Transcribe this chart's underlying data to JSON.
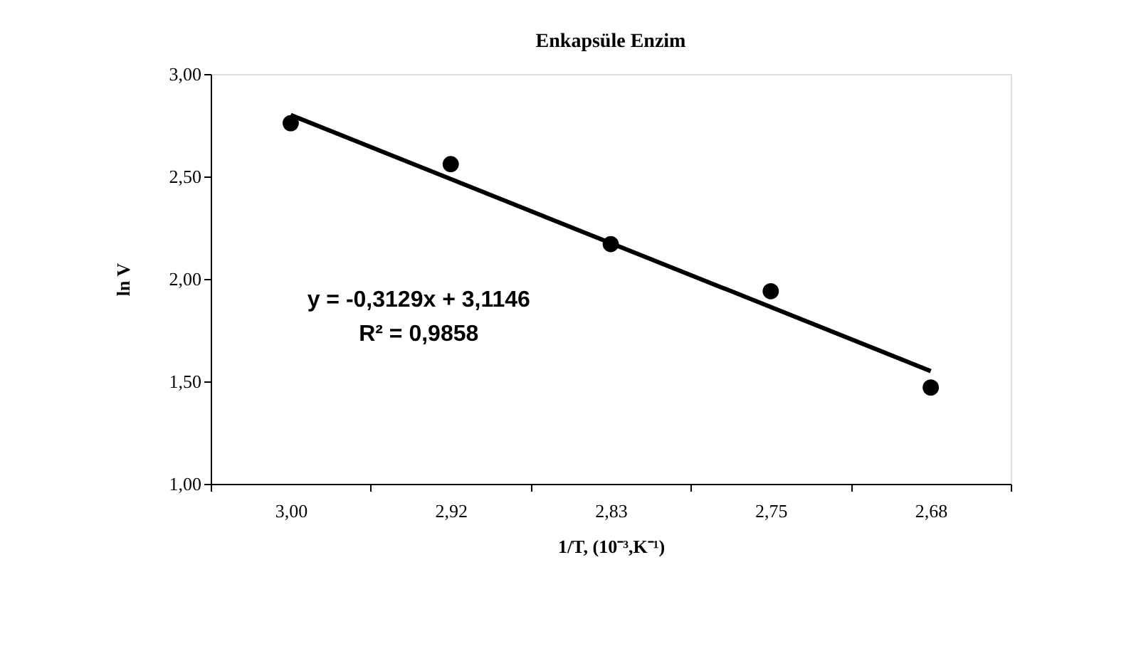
{
  "chart_data": {
    "type": "scatter",
    "title": "Enkapsüle Enzim",
    "xlabel": "1/T, (10⁻³,K⁻¹)",
    "ylabel": "ln V",
    "categories": [
      "3,00",
      "2,92",
      "2,83",
      "2,75",
      "2,68"
    ],
    "series": [
      {
        "color": "#000000",
        "marker": "circle",
        "x": [
          "3,00",
          "2,92",
          "2,83",
          "2,75",
          "2,68"
        ],
        "values": [
          2.76,
          2.56,
          2.17,
          1.94,
          1.47
        ]
      },
      {
        "type": "line",
        "color": "#000000",
        "line_style": "solid",
        "x": [
          "3,00",
          "2,68"
        ],
        "values": [
          2.8,
          1.55
        ]
      }
    ],
    "ylim": [
      1,
      3
    ],
    "yticks": [
      {
        "value": 1,
        "label": "1,00"
      },
      {
        "value": 1.5,
        "label": "1,50"
      },
      {
        "value": 2,
        "label": "2,00"
      },
      {
        "value": 2.5,
        "label": "2,50"
      },
      {
        "value": 3,
        "label": "3,00"
      }
    ],
    "annotations": [
      "y = -0,3129x + 3,1146",
      "R² = 0,9858"
    ],
    "grid": false
  }
}
